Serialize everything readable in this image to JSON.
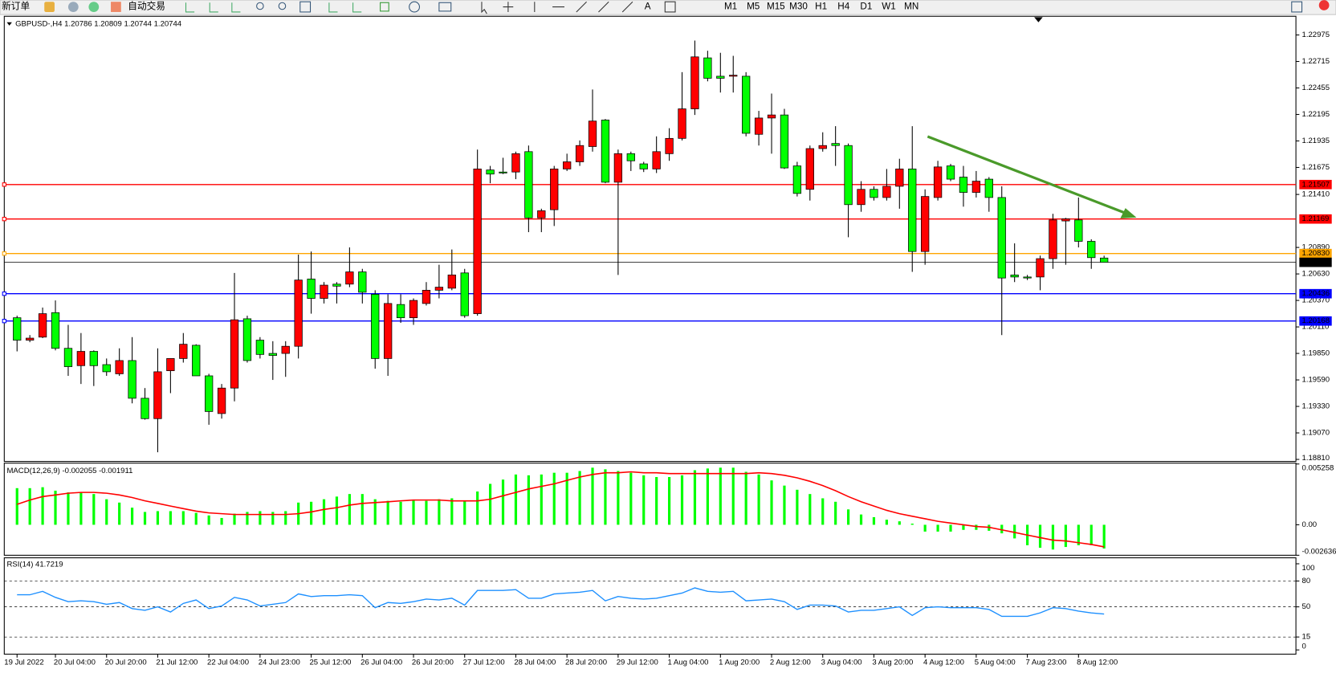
{
  "toolbar": {
    "buttons": [
      "新订单",
      "自动交易"
    ],
    "timeframes": [
      "M1",
      "M5",
      "M15",
      "M30",
      "H1",
      "H4",
      "D1",
      "W1",
      "MN"
    ]
  },
  "chart_data": [
    {
      "type": "candlestick",
      "title": "GBPUSD-,H4  1.20786 1.20809 1.20744 1.20744",
      "up_color": "#ff0000",
      "down_color": "#00ff00",
      "categories": [
        "19 Jul 2022",
        null,
        null,
        "20 Jul 04:00",
        null,
        null,
        null,
        "20 Jul 20:00",
        null,
        null,
        null,
        "21 Jul 12:00",
        null,
        null,
        null,
        "22 Jul 04:00",
        null,
        null,
        null,
        "24 Jul 23:00",
        null,
        null,
        null,
        "25 Jul 12:00",
        null,
        null,
        null,
        "26 Jul 04:00",
        null,
        null,
        null,
        "26 Jul 20:00",
        null,
        null,
        null,
        "27 Jul 12:00",
        null,
        null,
        null,
        "28 Jul 04:00",
        null,
        null,
        null,
        "28 Jul 20:00",
        null,
        null,
        null,
        "29 Jul 12:00",
        null,
        null,
        null,
        "1 Aug 04:00",
        null,
        null,
        null,
        "1 Aug 20:00",
        null,
        null,
        null,
        "2 Aug 12:00",
        null,
        null,
        null,
        "3 Aug 04:00",
        null,
        null,
        null,
        "3 Aug 20:00",
        null,
        null,
        null,
        "4 Aug 12:00",
        null,
        null,
        null,
        "5 Aug 04:00",
        null,
        null,
        null,
        "7 Aug 23:00",
        null,
        null,
        null,
        "8 Aug 12:00",
        null,
        null
      ],
      "ohlc": [
        [
          1.202,
          1.2022,
          1.1987,
          1.1998
        ],
        [
          1.1998,
          1.2003,
          1.1996,
          1.2
        ],
        [
          1.2001,
          1.203,
          1.2,
          1.2024
        ],
        [
          1.2025,
          1.2037,
          1.1988,
          1.199
        ],
        [
          1.199,
          1.2013,
          1.1963,
          1.1972
        ],
        [
          1.1973,
          1.2005,
          1.1955,
          1.1987
        ],
        [
          1.1987,
          1.1988,
          1.1953,
          1.1973
        ],
        [
          1.1974,
          1.198,
          1.1963,
          1.1967
        ],
        [
          1.1965,
          1.199,
          1.1963,
          1.1978
        ],
        [
          1.1978,
          1.2001,
          1.1936,
          1.1941
        ],
        [
          1.1941,
          1.1951,
          1.192,
          1.1921
        ],
        [
          1.1921,
          1.199,
          1.1888,
          1.1967
        ],
        [
          1.1968,
          1.198,
          1.1946,
          1.198
        ],
        [
          1.198,
          1.2005,
          1.1976,
          1.1994
        ],
        [
          1.1993,
          1.1994,
          1.1963,
          1.1963
        ],
        [
          1.1963,
          1.1965,
          1.1915,
          1.1928
        ],
        [
          1.1926,
          1.1955,
          1.1921,
          1.1951
        ],
        [
          1.1951,
          1.2064,
          1.1938,
          1.2018
        ],
        [
          1.2019,
          1.2022,
          1.1976,
          1.1978
        ],
        [
          1.1998,
          1.2001,
          1.198,
          1.1984
        ],
        [
          1.1985,
          1.1997,
          1.1959,
          1.1983
        ],
        [
          1.1985,
          1.1997,
          1.1962,
          1.1992
        ],
        [
          1.1992,
          1.2082,
          1.198,
          1.2057
        ],
        [
          1.2058,
          1.2085,
          1.2024,
          1.2039
        ],
        [
          1.2039,
          1.2055,
          1.2034,
          1.2052
        ],
        [
          1.2053,
          1.2055,
          1.2034,
          1.2051
        ],
        [
          1.2053,
          1.2089,
          1.205,
          1.2065
        ],
        [
          1.2065,
          1.2068,
          1.2034,
          1.2045
        ],
        [
          1.2043,
          1.2047,
          1.197,
          1.198
        ],
        [
          1.198,
          1.2043,
          1.1963,
          1.2034
        ],
        [
          1.2033,
          1.2043,
          1.2015,
          1.202
        ],
        [
          1.202,
          1.2039,
          1.2013,
          1.2037
        ],
        [
          1.2034,
          1.2055,
          1.2032,
          1.2047
        ],
        [
          1.2047,
          1.2072,
          1.2039,
          1.205
        ],
        [
          1.2049,
          1.2087,
          1.2047,
          1.2062
        ],
        [
          1.2064,
          1.2068,
          1.202,
          1.2022
        ],
        [
          1.2024,
          1.2185,
          1.2022,
          1.2166
        ],
        [
          1.2165,
          1.2169,
          1.2152,
          1.2161
        ],
        [
          1.2163,
          1.2177,
          1.2161,
          1.2162
        ],
        [
          1.2163,
          1.2183,
          1.2156,
          1.2181
        ],
        [
          1.2183,
          1.2189,
          1.2104,
          1.2118
        ],
        [
          1.2118,
          1.2127,
          1.2104,
          1.2125
        ],
        [
          1.2126,
          1.2169,
          1.211,
          1.2166
        ],
        [
          1.2166,
          1.2181,
          1.2164,
          1.2173
        ],
        [
          1.2173,
          1.2194,
          1.2169,
          1.2189
        ],
        [
          1.2188,
          1.2244,
          1.2183,
          1.2213
        ],
        [
          1.2214,
          1.2215,
          1.2152,
          1.2153
        ],
        [
          1.2153,
          1.2185,
          1.2062,
          1.2181
        ],
        [
          1.2181,
          1.2183,
          1.2164,
          1.2174
        ],
        [
          1.2171,
          1.2173,
          1.2163,
          1.2166
        ],
        [
          1.2166,
          1.2198,
          1.2162,
          1.2183
        ],
        [
          1.2181,
          1.2206,
          1.2174,
          1.2196
        ],
        [
          1.2196,
          1.2261,
          1.2194,
          1.2225
        ],
        [
          1.2225,
          1.2292,
          1.2219,
          1.2276
        ],
        [
          1.2275,
          1.2282,
          1.2252,
          1.2255
        ],
        [
          1.2257,
          1.228,
          1.2241,
          1.2255
        ],
        [
          1.2257,
          1.2277,
          1.2241,
          1.2258
        ],
        [
          1.2257,
          1.2261,
          1.2198,
          1.2201
        ],
        [
          1.22,
          1.2223,
          1.2189,
          1.2216
        ],
        [
          1.2216,
          1.224,
          1.2181,
          1.2219
        ],
        [
          1.2219,
          1.2225,
          1.2166,
          1.2167
        ],
        [
          1.2169,
          1.2173,
          1.2139,
          1.2142
        ],
        [
          1.2146,
          1.2189,
          1.2135,
          1.2186
        ],
        [
          1.2186,
          1.2202,
          1.2183,
          1.2189
        ],
        [
          1.2191,
          1.2208,
          1.2169,
          1.2189
        ],
        [
          1.2189,
          1.2191,
          1.2099,
          1.2131
        ],
        [
          1.2131,
          1.2154,
          1.2124,
          1.2146
        ],
        [
          1.2146,
          1.2149,
          1.2135,
          1.2138
        ],
        [
          1.2138,
          1.2166,
          1.2135,
          1.2149
        ],
        [
          1.2149,
          1.2176,
          1.2127,
          1.2166
        ],
        [
          1.2166,
          1.2208,
          1.2065,
          1.2085
        ],
        [
          1.2085,
          1.2146,
          1.2072,
          1.2139
        ],
        [
          1.2138,
          1.2174,
          1.2135,
          1.2168
        ],
        [
          1.2169,
          1.2171,
          1.2154,
          1.2156
        ],
        [
          1.2158,
          1.2169,
          1.2129,
          1.2143
        ],
        [
          1.2143,
          1.2164,
          1.2138,
          1.2154
        ],
        [
          1.2156,
          1.2158,
          1.2124,
          1.2138
        ],
        [
          1.2138,
          1.2149,
          1.2003,
          1.2059
        ],
        [
          1.2062,
          1.2093,
          1.2055,
          1.206
        ],
        [
          1.206,
          1.2062,
          1.2057,
          1.2059
        ],
        [
          1.206,
          1.2081,
          1.2047,
          1.2078
        ],
        [
          1.2078,
          1.2122,
          1.2068,
          1.2116
        ],
        [
          1.2115,
          1.2118,
          1.2072,
          1.2117
        ],
        [
          1.2116,
          1.2138,
          1.2089,
          1.2095
        ],
        [
          1.2095,
          1.2097,
          1.2068,
          1.2079
        ],
        [
          1.20786,
          1.20809,
          1.20744,
          1.20744
        ]
      ],
      "ylim": [
        1.1879,
        1.2315
      ],
      "yticks": [
        1.22975,
        1.22715,
        1.22455,
        1.22195,
        1.21935,
        1.21675,
        {
          "value": 1.2141,
          "label": "1.21410"
        },
        {
          "value": 1.2089,
          "label": "1.20890"
        },
        {
          "value": 1.2063,
          "label": "1.20630"
        },
        {
          "value": 1.2037,
          "label": "1.20370"
        },
        {
          "value": 1.2011,
          "label": "1.20110"
        },
        {
          "value": 1.1985,
          "label": "1.19850"
        },
        {
          "value": 1.1959,
          "label": "1.19590"
        },
        {
          "value": 1.1933,
          "label": "1.19330"
        },
        {
          "value": 1.1907,
          "label": "1.19070"
        },
        {
          "value": 1.1881,
          "label": "1.18810"
        }
      ],
      "levels": [
        {
          "value": 1.21507,
          "color": "#ff0000"
        },
        {
          "value": 1.21169,
          "color": "#ff0000"
        },
        {
          "value": 1.2083,
          "label": "1.20830",
          "color": "#ffa500"
        },
        {
          "value": 1.20744,
          "color": "#000000"
        },
        {
          "value": 1.20436,
          "color": "#0000ff"
        },
        {
          "value": 1.20168,
          "color": "#0000ff"
        }
      ]
    },
    {
      "type": "macd",
      "title": "MACD(12,26,9) -0.002055 -0.001911",
      "ylim": [
        -0.002636,
        0.005258
      ],
      "yticks": [
        0.005258,
        {
          "value": 0,
          "label": "0.00"
        },
        -0.002636
      ],
      "series": [
        {
          "type": "bar",
          "color": "#00ff00",
          "values": [
            0.00317,
            0.00317,
            0.00325,
            0.00295,
            0.0028,
            0.0028,
            0.00266,
            0.00221,
            0.00192,
            0.00148,
            0.00111,
            0.00118,
            0.00118,
            0.00118,
            0.00103,
            0.00081,
            0.00059,
            0.00096,
            0.00111,
            0.00118,
            0.00111,
            0.00118,
            0.00192,
            0.00199,
            0.00221,
            0.00244,
            0.00266,
            0.00266,
            0.00221,
            0.00207,
            0.00199,
            0.00214,
            0.00207,
            0.00221,
            0.00229,
            0.00207,
            0.00288,
            0.00354,
            0.00391,
            0.00435,
            0.00428,
            0.00435,
            0.0045,
            0.0045,
            0.00465,
            0.00494,
            0.0048,
            0.00465,
            0.0045,
            0.00428,
            0.00413,
            0.00413,
            0.00428,
            0.00472,
            0.00487,
            0.00494,
            0.00494,
            0.00458,
            0.00435,
            0.00384,
            0.00339,
            0.00303,
            0.00266,
            0.00229,
            0.00199,
            0.00133,
            0.00089,
            0.00066,
            0.00044,
            0.0003,
            0.0001,
            -0.00059,
            -0.00059,
            -0.00059,
            -0.00044,
            -0.00044,
            -0.00052,
            -0.00074,
            -0.00118,
            -0.00177,
            -0.00199,
            -0.00214,
            -0.00192,
            -0.00177,
            -0.00177,
            -0.002055
          ]
        },
        {
          "type": "line",
          "color": "#ff0000",
          "values": [
            0.00177,
            0.00214,
            0.00244,
            0.00258,
            0.00273,
            0.0028,
            0.0028,
            0.00273,
            0.00258,
            0.00236,
            0.00207,
            0.00185,
            0.00162,
            0.0014,
            0.00118,
            0.00103,
            0.00096,
            0.00089,
            0.00089,
            0.00089,
            0.00089,
            0.00089,
            0.00096,
            0.00111,
            0.00133,
            0.00148,
            0.0017,
            0.00185,
            0.00192,
            0.00199,
            0.00207,
            0.00214,
            0.00214,
            0.00214,
            0.00207,
            0.00207,
            0.00207,
            0.00221,
            0.00251,
            0.0028,
            0.0031,
            0.00332,
            0.00354,
            0.00384,
            0.00413,
            0.00435,
            0.0045,
            0.0045,
            0.00458,
            0.0045,
            0.0045,
            0.00443,
            0.00443,
            0.00443,
            0.00443,
            0.00443,
            0.00443,
            0.00443,
            0.0045,
            0.00443,
            0.00428,
            0.00406,
            0.00376,
            0.00339,
            0.00295,
            0.00244,
            0.00199,
            0.00162,
            0.00125,
            0.00096,
            0.00074,
            0.00052,
            0.0003,
            0.00015,
            0,
            -0.00015,
            -0.00022,
            -0.00044,
            -0.00066,
            -0.00089,
            -0.00111,
            -0.00133,
            -0.0014,
            -0.00155,
            -0.0017,
            -0.001911
          ]
        }
      ]
    },
    {
      "type": "line",
      "title": "RSI(14) 41.7219",
      "color": "#1e90ff",
      "ylim": [
        0,
        100
      ],
      "yticks": [
        100,
        80,
        50,
        15,
        0
      ],
      "grid": "dashed",
      "values": [
        64,
        64,
        68,
        61,
        56,
        57,
        56,
        53,
        55,
        48,
        46,
        50,
        44,
        54,
        58,
        48,
        51,
        61,
        58,
        51,
        53,
        55,
        65,
        62,
        63,
        63,
        64,
        63,
        49,
        55,
        54,
        56,
        59,
        58,
        60,
        52,
        69,
        69,
        69,
        70,
        60,
        60,
        65,
        66,
        67,
        69,
        57,
        62,
        60,
        59,
        60,
        63,
        66,
        72,
        68,
        67,
        68,
        57,
        58,
        59,
        56,
        47,
        52,
        52,
        51,
        44,
        46,
        46,
        48,
        50,
        40,
        49,
        50,
        49,
        49,
        49,
        47,
        39,
        39,
        39,
        43,
        49,
        48,
        45,
        43,
        41.7219
      ]
    }
  ]
}
